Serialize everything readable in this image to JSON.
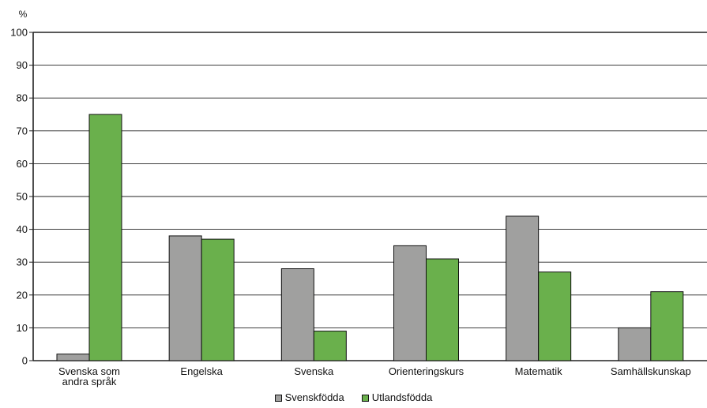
{
  "chart_data": {
    "type": "bar",
    "ylabel": "%",
    "ylim": [
      0,
      100
    ],
    "yticks": [
      0,
      10,
      20,
      30,
      40,
      50,
      60,
      70,
      80,
      90,
      100
    ],
    "grid": true,
    "legend_position": "bottom-center",
    "categories": [
      [
        "Svenska som",
        "andra språk"
      ],
      [
        "Engelska"
      ],
      [
        "Svenska"
      ],
      [
        "Orienteringskurs"
      ],
      [
        "Matematik"
      ],
      [
        "Samhällskunskap"
      ]
    ],
    "series": [
      {
        "name": "Svenskfödda",
        "color": "#a0a09f",
        "values": [
          2,
          38,
          28,
          35,
          44,
          10
        ]
      },
      {
        "name": "Utlandsfödda",
        "color": "#6ab04c",
        "values": [
          75,
          37,
          9,
          31,
          27,
          21
        ]
      }
    ]
  }
}
